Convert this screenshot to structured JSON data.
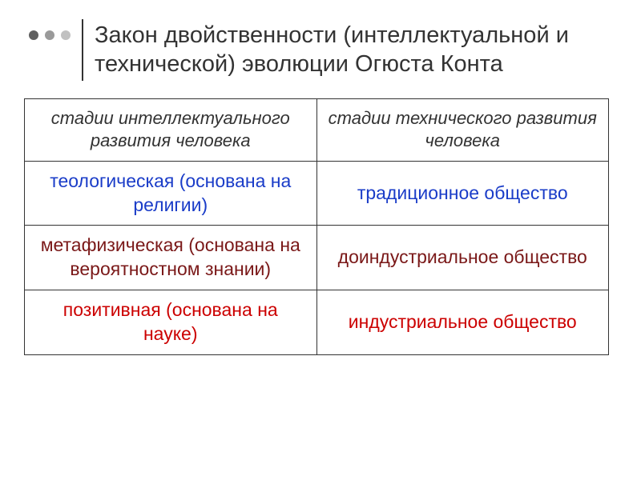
{
  "title": "Закон двойственности (интеллектуальной и технической) эволюции Огюста Конта",
  "bullet_colors": [
    "#606060",
    "#9a9a9a",
    "#c1c1c1"
  ],
  "table": {
    "headers": [
      "стадии интеллектуального развития человека",
      "стадии технического развития человека"
    ],
    "header_color": "#333333",
    "rows": [
      {
        "cells": [
          "теологическая (основана на религии)",
          "традиционное общество"
        ],
        "color": "#1a3cc8"
      },
      {
        "cells": [
          "метафизическая (основана на вероятностном знании)",
          "доиндустриальное общество"
        ],
        "color": "#7a1818"
      },
      {
        "cells": [
          "позитивная\n(основана на науке)",
          "индустриальное общество"
        ],
        "color": "#cc0000"
      }
    ]
  }
}
